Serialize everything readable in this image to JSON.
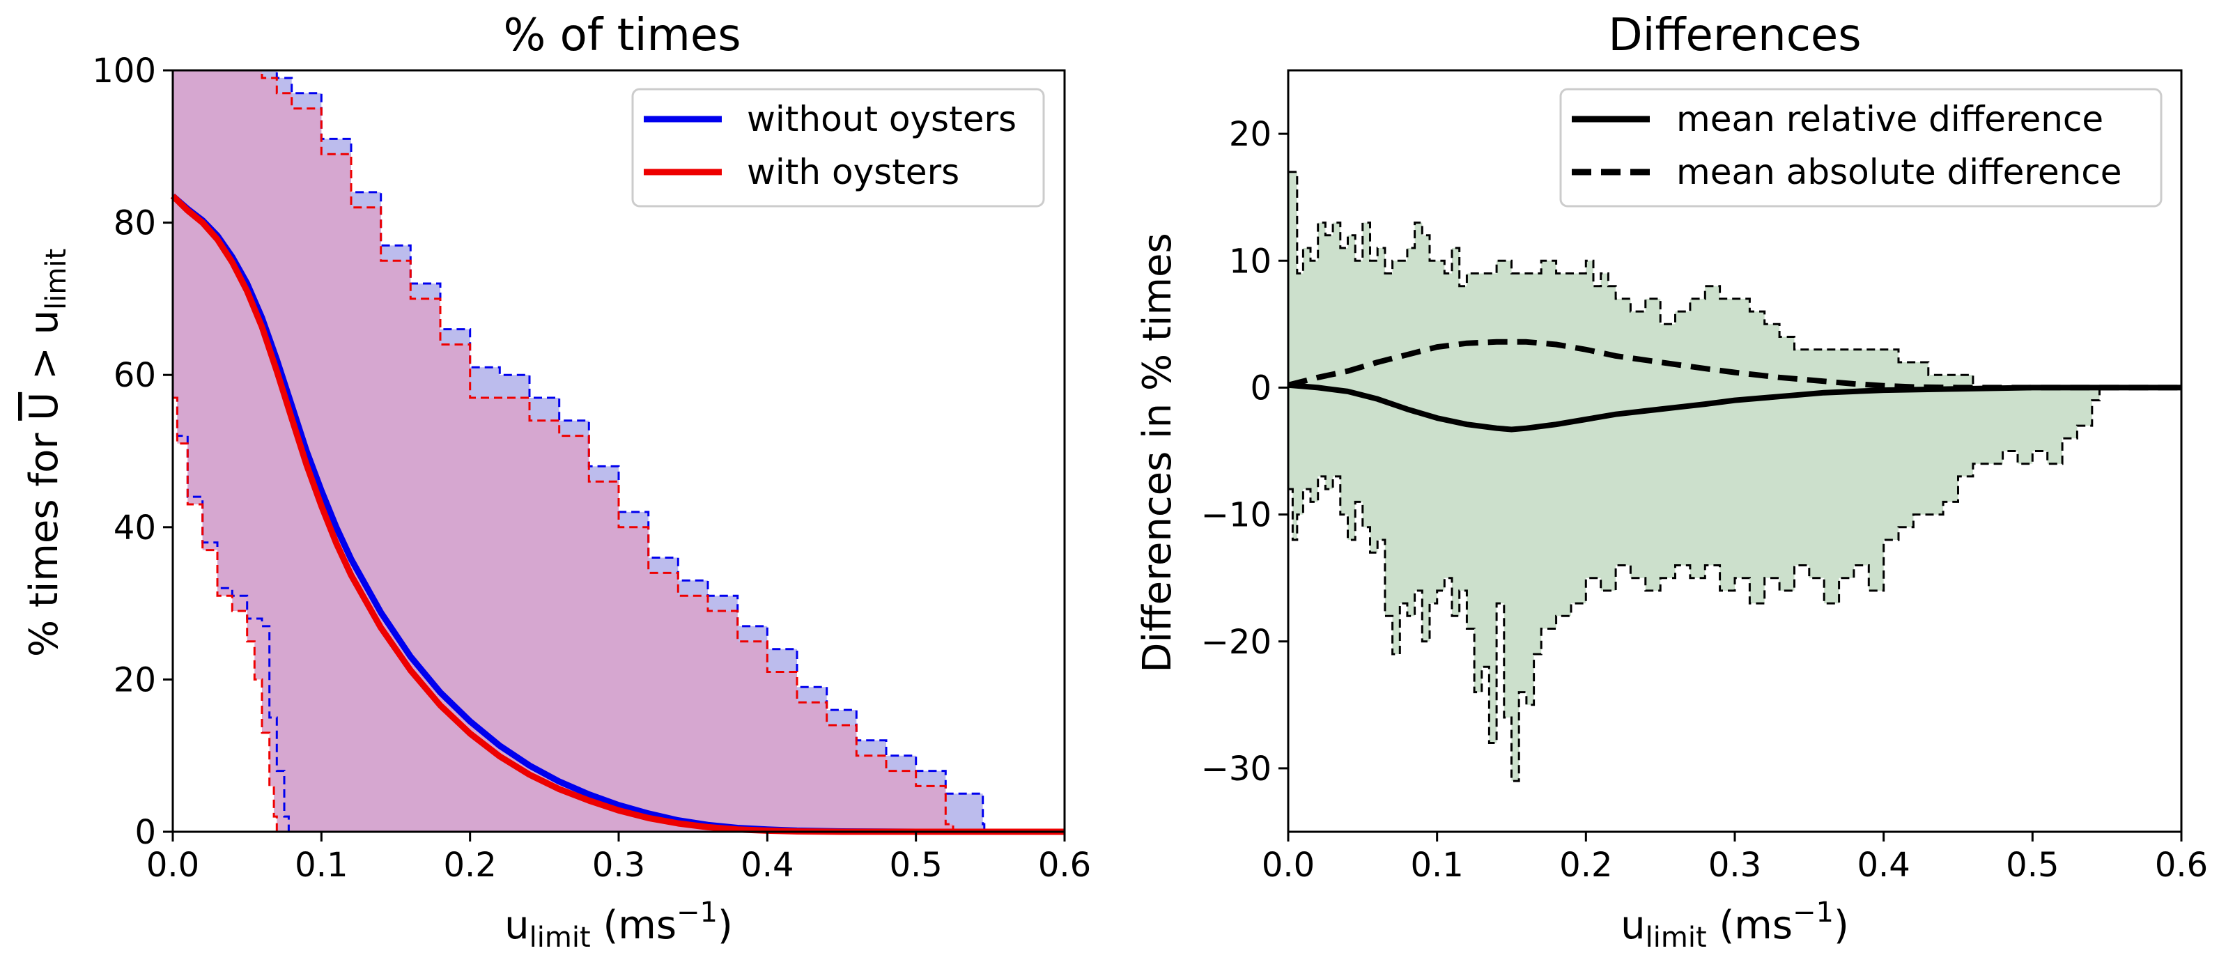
{
  "chart_data": [
    {
      "type": "line",
      "title": "% of times",
      "xlabel_main": "u",
      "xlabel_sub": "limit",
      "xlabel_units": "(ms",
      "xlabel_exp": "−1",
      "xlabel_close": ")",
      "ylabel_prefix": "% times for ",
      "ylabel_var": "U",
      "ylabel_gt": " > u",
      "ylabel_sub": "limit",
      "xlim": [
        0,
        0.6
      ],
      "ylim": [
        0,
        100
      ],
      "xticks": [
        0.0,
        0.1,
        0.2,
        0.3,
        0.4,
        0.5,
        0.6
      ],
      "xtick_labels": [
        "0.0",
        "0.1",
        "0.2",
        "0.3",
        "0.4",
        "0.5",
        "0.6"
      ],
      "yticks": [
        0,
        20,
        40,
        60,
        80,
        100
      ],
      "ytick_labels": [
        "0",
        "20",
        "40",
        "60",
        "80",
        "100"
      ],
      "legend_position": "top-right",
      "series": [
        {
          "name": "without oysters",
          "color": "#0000ee",
          "fill": "#b8b8ec",
          "mean": {
            "x": [
              0,
              0.01,
              0.02,
              0.03,
              0.04,
              0.05,
              0.06,
              0.07,
              0.08,
              0.09,
              0.1,
              0.11,
              0.12,
              0.14,
              0.16,
              0.18,
              0.2,
              0.22,
              0.24,
              0.26,
              0.28,
              0.3,
              0.32,
              0.34,
              0.36,
              0.38,
              0.4,
              0.42,
              0.45,
              0.5,
              0.55,
              0.6
            ],
            "y": [
              83.5,
              81.8,
              80.3,
              78.3,
              75.5,
              72,
              67.5,
              62,
              56,
              50,
              44.8,
              40,
              35.8,
              28.8,
              23,
              18.3,
              14.5,
              11.3,
              8.7,
              6.6,
              4.9,
              3.5,
              2.4,
              1.5,
              0.9,
              0.5,
              0.3,
              0.15,
              0.05,
              0,
              0,
              0
            ]
          },
          "upper": {
            "x": [
              0,
              0.05,
              0.06,
              0.07,
              0.08,
              0.1,
              0.12,
              0.14,
              0.16,
              0.18,
              0.2,
              0.22,
              0.24,
              0.26,
              0.28,
              0.3,
              0.32,
              0.34,
              0.36,
              0.38,
              0.4,
              0.42,
              0.44,
              0.46,
              0.48,
              0.5,
              0.52,
              0.545,
              0.546,
              0.6
            ],
            "y": [
              100,
              100,
              100,
              99,
              97,
              91,
              84,
              77,
              72,
              66,
              61,
              60,
              57,
              54,
              48,
              42,
              36,
              33,
              31,
              27,
              24,
              19,
              16,
              12,
              10,
              8,
              5,
              1,
              0,
              0
            ]
          },
          "lower": {
            "x": [
              0,
              0.003,
              0.01,
              0.02,
              0.03,
              0.04,
              0.05,
              0.06,
              0.065,
              0.07,
              0.075,
              0.078,
              0.6
            ],
            "y": [
              57,
              52,
              44,
              38,
              32,
              31,
              28,
              27,
              15,
              8,
              2,
              0,
              0
            ]
          }
        },
        {
          "name": "with oysters",
          "color": "#ee0000",
          "fill": "#d8a4cc",
          "mean": {
            "x": [
              0,
              0.01,
              0.02,
              0.03,
              0.04,
              0.05,
              0.06,
              0.07,
              0.08,
              0.09,
              0.1,
              0.11,
              0.12,
              0.14,
              0.16,
              0.18,
              0.2,
              0.22,
              0.24,
              0.26,
              0.28,
              0.3,
              0.32,
              0.34,
              0.36,
              0.38,
              0.4,
              0.42,
              0.45,
              0.5,
              0.55,
              0.6
            ],
            "y": [
              83.5,
              81.6,
              80,
              77.8,
              74.8,
              71,
              66.3,
              60.5,
              54.3,
              48.2,
              42.8,
              37.9,
              33.7,
              26.8,
              21.2,
              16.6,
              12.9,
              9.9,
              7.5,
              5.6,
              4.1,
              2.8,
              1.8,
              1.1,
              0.6,
              0.3,
              0.15,
              0.05,
              0,
              0,
              0,
              0
            ]
          },
          "upper": {
            "x": [
              0,
              0.05,
              0.06,
              0.07,
              0.08,
              0.1,
              0.12,
              0.14,
              0.16,
              0.18,
              0.2,
              0.22,
              0.24,
              0.26,
              0.28,
              0.3,
              0.32,
              0.34,
              0.36,
              0.38,
              0.4,
              0.42,
              0.44,
              0.46,
              0.48,
              0.5,
              0.52,
              0.525,
              0.526,
              0.6
            ],
            "y": [
              100,
              100,
              99,
              97,
              95,
              89,
              82,
              75,
              70,
              64,
              57,
              57,
              54,
              52,
              46,
              40,
              34,
              31,
              29,
              25,
              21,
              17,
              14,
              10,
              8,
              6,
              1,
              0,
              0,
              0
            ]
          },
          "lower": {
            "x": [
              0,
              0.003,
              0.01,
              0.02,
              0.03,
              0.04,
              0.05,
              0.055,
              0.06,
              0.065,
              0.068,
              0.07,
              0.6
            ],
            "y": [
              57,
              51,
              43,
              37,
              31,
              29,
              25,
              20,
              13,
              6,
              2,
              0,
              0
            ]
          }
        }
      ]
    },
    {
      "type": "line",
      "title": "Differences",
      "xlabel_main": "u",
      "xlabel_sub": "limit",
      "xlabel_units": "(ms",
      "xlabel_exp": "−1",
      "xlabel_close": ")",
      "ylabel": "Differences in % times",
      "xlim": [
        0,
        0.6
      ],
      "ylim": [
        -35,
        25
      ],
      "xticks": [
        0.0,
        0.1,
        0.2,
        0.3,
        0.4,
        0.5,
        0.6
      ],
      "xtick_labels": [
        "0.0",
        "0.1",
        "0.2",
        "0.3",
        "0.4",
        "0.5",
        "0.6"
      ],
      "yticks": [
        -30,
        -20,
        -10,
        0,
        10,
        20
      ],
      "ytick_labels": [
        "−30",
        "−20",
        "−10",
        "0",
        "10",
        "20"
      ],
      "legend_position": "top-right",
      "band_fill": "#cce0cc",
      "series": [
        {
          "name": "mean relative difference",
          "color": "#000000",
          "style": "solid",
          "x": [
            0,
            0.02,
            0.04,
            0.06,
            0.08,
            0.1,
            0.12,
            0.14,
            0.15,
            0.16,
            0.18,
            0.2,
            0.22,
            0.25,
            0.28,
            0.3,
            0.33,
            0.36,
            0.4,
            0.45,
            0.5,
            0.55,
            0.6
          ],
          "y": [
            0.2,
            0,
            -0.3,
            -0.9,
            -1.7,
            -2.4,
            -2.9,
            -3.2,
            -3.3,
            -3.2,
            -2.9,
            -2.5,
            -2.1,
            -1.7,
            -1.3,
            -1.0,
            -0.7,
            -0.4,
            -0.2,
            -0.1,
            0,
            0,
            0
          ]
        },
        {
          "name": "mean absolute difference",
          "color": "#000000",
          "style": "dashed",
          "x": [
            0,
            0.02,
            0.04,
            0.06,
            0.08,
            0.1,
            0.12,
            0.14,
            0.16,
            0.18,
            0.2,
            0.22,
            0.25,
            0.28,
            0.3,
            0.33,
            0.36,
            0.38,
            0.4,
            0.42,
            0.45,
            0.5,
            0.6
          ],
          "y": [
            0.2,
            0.8,
            1.3,
            2.0,
            2.6,
            3.2,
            3.5,
            3.6,
            3.6,
            3.4,
            3.0,
            2.5,
            2.0,
            1.5,
            1.2,
            0.8,
            0.5,
            0.3,
            0.15,
            0.05,
            0,
            0,
            0
          ]
        }
      ],
      "band_upper": {
        "x": [
          0,
          0.003,
          0.006,
          0.01,
          0.015,
          0.02,
          0.025,
          0.03,
          0.035,
          0.04,
          0.045,
          0.05,
          0.055,
          0.06,
          0.065,
          0.07,
          0.075,
          0.08,
          0.085,
          0.09,
          0.095,
          0.1,
          0.105,
          0.11,
          0.115,
          0.12,
          0.13,
          0.14,
          0.15,
          0.16,
          0.17,
          0.18,
          0.19,
          0.2,
          0.205,
          0.21,
          0.215,
          0.22,
          0.23,
          0.24,
          0.25,
          0.26,
          0.27,
          0.28,
          0.29,
          0.3,
          0.31,
          0.32,
          0.33,
          0.34,
          0.35,
          0.36,
          0.37,
          0.38,
          0.39,
          0.4,
          0.41,
          0.42,
          0.43,
          0.44,
          0.45,
          0.46
        ],
        "y": [
          17,
          17,
          9,
          11,
          10,
          13,
          12,
          13,
          11,
          12,
          10,
          13,
          10,
          11,
          9,
          10,
          10,
          11,
          13,
          12,
          10,
          10,
          9,
          11,
          8,
          9,
          9,
          10,
          9,
          9,
          10,
          9,
          9,
          10,
          8,
          9,
          8,
          7,
          6,
          7,
          5,
          6,
          7,
          8,
          7,
          7,
          6,
          5,
          4,
          3,
          3,
          3,
          3,
          3,
          3,
          3,
          2,
          2,
          1,
          1,
          1,
          0
        ]
      },
      "band_lower": {
        "x": [
          0,
          0.003,
          0.006,
          0.01,
          0.015,
          0.02,
          0.025,
          0.03,
          0.035,
          0.04,
          0.045,
          0.05,
          0.055,
          0.06,
          0.065,
          0.07,
          0.075,
          0.08,
          0.085,
          0.09,
          0.095,
          0.1,
          0.105,
          0.11,
          0.115,
          0.12,
          0.125,
          0.13,
          0.135,
          0.14,
          0.145,
          0.15,
          0.155,
          0.16,
          0.165,
          0.17,
          0.18,
          0.19,
          0.2,
          0.21,
          0.22,
          0.23,
          0.24,
          0.25,
          0.26,
          0.27,
          0.28,
          0.29,
          0.3,
          0.31,
          0.32,
          0.33,
          0.34,
          0.35,
          0.36,
          0.37,
          0.38,
          0.39,
          0.4,
          0.41,
          0.42,
          0.43,
          0.44,
          0.45,
          0.46,
          0.47,
          0.48,
          0.49,
          0.5,
          0.51,
          0.52,
          0.53,
          0.54,
          0.545
        ],
        "y": [
          -8,
          -12,
          -10,
          -8,
          -9,
          -7,
          -8,
          -7,
          -10,
          -12,
          -9,
          -11,
          -13,
          -12,
          -18,
          -21,
          -17,
          -18,
          -16,
          -20,
          -17,
          -16,
          -15,
          -18,
          -16,
          -19,
          -24,
          -22,
          -28,
          -17,
          -26,
          -31,
          -24,
          -25,
          -21,
          -19,
          -18,
          -17,
          -15,
          -16,
          -14,
          -15,
          -16,
          -15,
          -14,
          -15,
          -14,
          -16,
          -15,
          -17,
          -15,
          -16,
          -14,
          -15,
          -17,
          -15,
          -14,
          -16,
          -12,
          -11,
          -10,
          -10,
          -9,
          -7,
          -6,
          -6,
          -5,
          -6,
          -5,
          -6,
          -4,
          -3,
          -1,
          0
        ]
      }
    }
  ]
}
